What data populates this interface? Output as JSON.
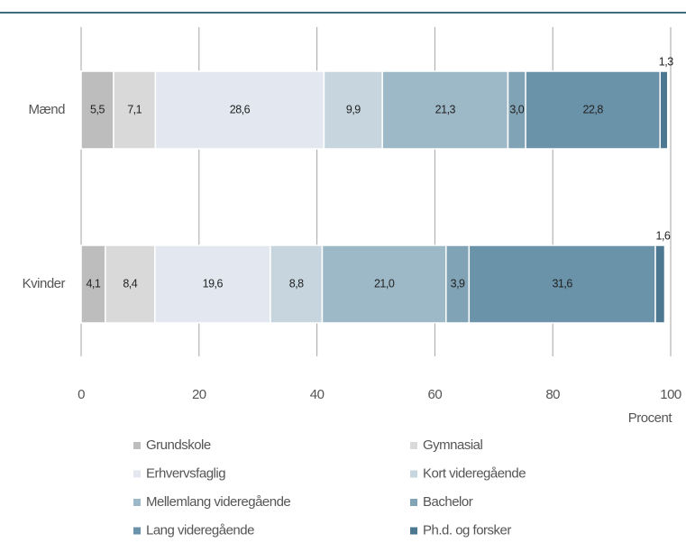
{
  "chart_data": {
    "type": "stacked-barh",
    "categories": [
      "Mænd",
      "Kvinder"
    ],
    "series": [
      {
        "name": "Grundskole",
        "color": "#bdbdbd",
        "values": [
          5.5,
          4.1
        ],
        "value_labels": [
          "5,5",
          "4,1"
        ]
      },
      {
        "name": "Gymnasial",
        "color": "#d9d9d9",
        "values": [
          7.1,
          8.4
        ],
        "value_labels": [
          "7,1",
          "8,4"
        ]
      },
      {
        "name": "Erhvervsfaglig",
        "color": "#e3e8f0",
        "values": [
          28.6,
          19.6
        ],
        "value_labels": [
          "28,6",
          "19,6"
        ]
      },
      {
        "name": "Kort videregående",
        "color": "#c6d5de",
        "values": [
          9.9,
          8.8
        ],
        "value_labels": [
          "9,9",
          "8,8"
        ]
      },
      {
        "name": "Mellemlang videregående",
        "color": "#9db8c7",
        "values": [
          21.3,
          21.0
        ],
        "value_labels": [
          "21,3",
          "21,0"
        ]
      },
      {
        "name": "Bachelor",
        "color": "#80a3b6",
        "values": [
          3.0,
          3.9
        ],
        "value_labels": [
          "3,0",
          "3,9"
        ]
      },
      {
        "name": "Lang videregående",
        "color": "#6a93aa",
        "values": [
          22.8,
          31.6
        ],
        "value_labels": [
          "22,8",
          "31,6"
        ]
      },
      {
        "name": "Ph.d. og forsker",
        "color": "#4c7892",
        "values": [
          1.3,
          1.6
        ],
        "value_labels": [
          "1,3",
          "1,6"
        ]
      }
    ],
    "xlabel": "Procent",
    "xlim": [
      0,
      100
    ],
    "xticks": [
      0,
      20,
      40,
      60,
      80,
      100
    ],
    "grid": true
  }
}
